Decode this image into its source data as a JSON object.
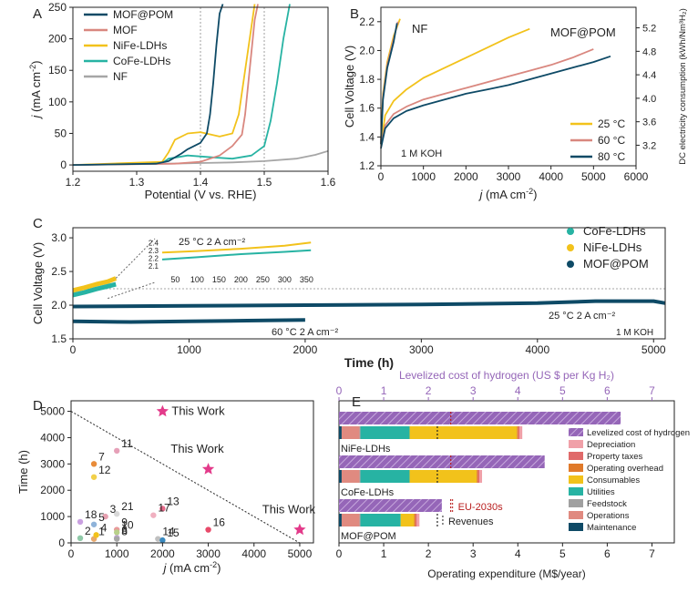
{
  "colors": {
    "mof_pom": "#0e4a66",
    "mof": "#d9877f",
    "nife": "#f2c21b",
    "cofe": "#27b3a3",
    "nf": "#a6a6a6",
    "purple": "#9566b8",
    "star": "#e33a8a",
    "black": "#222222",
    "red_dash": "#b81d1d"
  },
  "chart_data": [
    {
      "panel": "A",
      "type": "line",
      "xlabel": "Potential (V vs. RHE)",
      "ylabel": "j (mA cm⁻²)",
      "ylabel_italic": "j",
      "ylabel_rest": " (mA cm",
      "ylabel_sup": "-2",
      "ylabel_end": ")",
      "xlim": [
        1.2,
        1.6
      ],
      "ylim": [
        -10,
        250
      ],
      "xticks": [
        "1.2",
        "1.3",
        "1.4",
        "1.5",
        "1.6"
      ],
      "xtick_values": [
        1.2,
        1.3,
        1.4,
        1.5,
        1.6
      ],
      "yticks": [
        "0",
        "50",
        "100",
        "150",
        "200",
        "250"
      ],
      "ytick_values": [
        0,
        50,
        100,
        150,
        200,
        250
      ],
      "ref_lines_x": [
        1.4,
        1.5
      ],
      "series": [
        {
          "name": "MOF@POM",
          "color_key": "mof_pom",
          "x": [
            1.2,
            1.33,
            1.35,
            1.37,
            1.38,
            1.4,
            1.41,
            1.415,
            1.42,
            1.425,
            1.43,
            1.435
          ],
          "y": [
            0,
            2,
            6,
            18,
            25,
            35,
            50,
            80,
            130,
            190,
            240,
            255
          ]
        },
        {
          "name": "MOF",
          "color_key": "mof",
          "x": [
            1.2,
            1.36,
            1.4,
            1.43,
            1.45,
            1.465,
            1.47,
            1.475,
            1.48,
            1.485,
            1.49
          ],
          "y": [
            0,
            2,
            5,
            15,
            30,
            48,
            80,
            130,
            180,
            230,
            255
          ]
        },
        {
          "name": "NiFe-LDHs",
          "color_key": "nife",
          "x": [
            1.2,
            1.34,
            1.35,
            1.36,
            1.38,
            1.4,
            1.43,
            1.45,
            1.46,
            1.47,
            1.48,
            1.485
          ],
          "y": [
            0,
            5,
            20,
            40,
            50,
            52,
            45,
            50,
            80,
            150,
            220,
            255
          ]
        },
        {
          "name": "CoFe-LDHs",
          "color_key": "cofe",
          "x": [
            1.2,
            1.34,
            1.35,
            1.38,
            1.42,
            1.45,
            1.48,
            1.5,
            1.51,
            1.52,
            1.53,
            1.54
          ],
          "y": [
            0,
            3,
            10,
            15,
            12,
            10,
            15,
            30,
            70,
            130,
            200,
            255
          ]
        },
        {
          "name": "NF",
          "color_key": "nf",
          "x": [
            1.2,
            1.35,
            1.4,
            1.45,
            1.5,
            1.55,
            1.58,
            1.6
          ],
          "y": [
            0,
            2,
            3,
            4,
            6,
            10,
            16,
            22
          ]
        }
      ]
    },
    {
      "panel": "B",
      "type": "line",
      "xlabel": "j (mA cm⁻²)",
      "xlabel_italic": "j",
      "xlabel_rest": " (mA cm",
      "xlabel_sup": "-2",
      "xlabel_end": ")",
      "ylabel": "Cell Voltage (V)",
      "y2label": "DC electricity consumption (kWh/Nm³H₂)",
      "xlim": [
        0,
        6000
      ],
      "ylim": [
        1.2,
        2.3
      ],
      "xticks": [
        "0",
        "1000",
        "2000",
        "3000",
        "4000",
        "5000",
        "6000"
      ],
      "xtick_values": [
        0,
        1000,
        2000,
        3000,
        4000,
        5000,
        6000
      ],
      "yticks": [
        "1.2",
        "1.4",
        "1.6",
        "1.8",
        "2.0",
        "2.2"
      ],
      "ytick_values": [
        1.2,
        1.4,
        1.6,
        1.8,
        2.0,
        2.2
      ],
      "y2ticks": [
        "3.2",
        "3.6",
        "4.0",
        "4.4",
        "4.8",
        "5.2"
      ],
      "y2tick_values": [
        3.2,
        3.6,
        4.0,
        4.4,
        4.8,
        5.2
      ],
      "annotations": [
        "NF",
        "MOF@POM",
        "1 M KOH"
      ],
      "legend": [
        "25 °C",
        "60 °C",
        "80 °C"
      ],
      "series": [
        {
          "name": "MOF@POM 25 °C",
          "color_key": "nife",
          "x": [
            0,
            100,
            300,
            600,
            1000,
            1500,
            2000,
            2500,
            3000,
            3500
          ],
          "y": [
            1.35,
            1.55,
            1.65,
            1.73,
            1.81,
            1.88,
            1.95,
            2.02,
            2.09,
            2.15
          ]
        },
        {
          "name": "MOF@POM 60 °C",
          "color_key": "mof",
          "x": [
            0,
            100,
            300,
            600,
            1000,
            1500,
            2000,
            2500,
            3000,
            3500,
            4000,
            4500,
            5000
          ],
          "y": [
            1.33,
            1.48,
            1.56,
            1.61,
            1.66,
            1.7,
            1.74,
            1.78,
            1.82,
            1.86,
            1.9,
            1.95,
            2.01
          ]
        },
        {
          "name": "MOF@POM 80 °C",
          "color_key": "mof_pom",
          "x": [
            0,
            100,
            300,
            600,
            1000,
            1500,
            2000,
            2500,
            3000,
            3500,
            4000,
            4500,
            5000,
            5400
          ],
          "y": [
            1.32,
            1.46,
            1.53,
            1.58,
            1.62,
            1.66,
            1.7,
            1.73,
            1.76,
            1.8,
            1.84,
            1.88,
            1.92,
            1.96
          ]
        },
        {
          "name": "NF 25 °C",
          "color_key": "nife",
          "x": [
            0,
            50,
            150,
            300,
            450
          ],
          "y": [
            1.38,
            1.7,
            1.92,
            2.1,
            2.22
          ]
        },
        {
          "name": "NF 60 °C",
          "color_key": "mof",
          "x": [
            0,
            50,
            150,
            300,
            400
          ],
          "y": [
            1.36,
            1.68,
            1.9,
            2.08,
            2.2
          ]
        },
        {
          "name": "NF 80 °C",
          "color_key": "mof_pom",
          "x": [
            0,
            50,
            150,
            300,
            380
          ],
          "y": [
            1.35,
            1.66,
            1.88,
            2.06,
            2.19
          ]
        }
      ]
    },
    {
      "panel": "C",
      "type": "line",
      "xlabel": "Time (h)",
      "ylabel": "Cell Voltage (V)",
      "xlim": [
        0,
        5100
      ],
      "ylim": [
        1.5,
        3.15
      ],
      "xticks": [
        "0",
        "1000",
        "2000",
        "3000",
        "4000",
        "5000"
      ],
      "xtick_values": [
        0,
        1000,
        2000,
        3000,
        4000,
        5000
      ],
      "yticks": [
        "1.5",
        "2.0",
        "2.5",
        "3.0"
      ],
      "ytick_values": [
        1.5,
        2.0,
        2.5,
        3.0
      ],
      "legend": [
        "CoFe-LDHs",
        "NiFe-LDHs",
        "MOF@POM"
      ],
      "annotations": {
        "inset_condition": "25 °C   2 A cm⁻²",
        "lower_condition": "60 °C   2 A cm⁻²",
        "upper_condition": "25 °C   2 A cm⁻²",
        "electrolyte": "1 M KOH"
      },
      "inset": {
        "xticks": [
          "50",
          "100",
          "150",
          "200",
          "250",
          "300",
          "350"
        ],
        "xtick_values": [
          50,
          100,
          150,
          200,
          250,
          300,
          350
        ],
        "yticks": [
          "2.1",
          "2.2",
          "2.3",
          "2.4"
        ],
        "ytick_values": [
          2.1,
          2.2,
          2.3,
          2.4
        ],
        "xlim": [
          20,
          370
        ],
        "ylim": [
          2.05,
          2.45
        ],
        "series": [
          {
            "name": "NiFe-LDHs",
            "color_key": "nife",
            "x": [
              20,
              100,
              200,
              300,
              360
            ],
            "y": [
              2.27,
              2.29,
              2.32,
              2.36,
              2.4
            ]
          },
          {
            "name": "CoFe-LDHs",
            "color_key": "cofe",
            "x": [
              20,
              100,
              200,
              300,
              360
            ],
            "y": [
              2.18,
              2.21,
              2.25,
              2.28,
              2.3
            ]
          }
        ]
      },
      "series": [
        {
          "name": "NiFe-LDHs",
          "color_key": "nife",
          "x": [
            0,
            100,
            200,
            300,
            370
          ],
          "y": [
            2.22,
            2.26,
            2.31,
            2.35,
            2.4
          ]
        },
        {
          "name": "CoFe-LDHs",
          "color_key": "cofe",
          "x": [
            0,
            100,
            200,
            300,
            370
          ],
          "y": [
            2.15,
            2.19,
            2.24,
            2.28,
            2.31
          ]
        },
        {
          "name": "MOF@POM 60 °C",
          "color_key": "mof_pom",
          "x": [
            0,
            500,
            1000,
            1500,
            2000
          ],
          "y": [
            1.76,
            1.75,
            1.76,
            1.77,
            1.78
          ]
        },
        {
          "name": "MOF@POM 25 °C",
          "color_key": "mof_pom",
          "x": [
            0,
            1000,
            2000,
            3000,
            4000,
            4500,
            5000,
            5100
          ],
          "y": [
            1.98,
            1.99,
            2.0,
            2.01,
            2.03,
            2.06,
            2.06,
            2.03
          ]
        }
      ]
    },
    {
      "panel": "D",
      "type": "scatter",
      "xlabel": "j (mA cm⁻²)",
      "xlabel_italic": "j",
      "xlabel_rest": " (mA cm",
      "xlabel_sup": "-2",
      "xlabel_end": ")",
      "ylabel": "Time (h)",
      "xlim": [
        0,
        5300
      ],
      "ylim": [
        0,
        5400
      ],
      "xticks": [
        "0",
        "1000",
        "2000",
        "3000",
        "4000",
        "5000"
      ],
      "xtick_values": [
        0,
        1000,
        2000,
        3000,
        4000,
        5000
      ],
      "yticks": [
        "0",
        "1000",
        "2000",
        "3000",
        "4000",
        "5000"
      ],
      "ytick_values": [
        0,
        1000,
        2000,
        3000,
        4000,
        5000
      ],
      "trend_line": {
        "x": [
          0,
          5000
        ],
        "y": [
          5000,
          0
        ]
      },
      "stars": [
        {
          "label": "This Work",
          "x": 2000,
          "y": 5000
        },
        {
          "label": "This Work",
          "x": 3000,
          "y": 2800
        },
        {
          "label": "This Work",
          "x": 5000,
          "y": 500
        }
      ],
      "points": [
        {
          "label": "1",
          "x": 500,
          "y": 150,
          "color": "#e8a86b"
        },
        {
          "label": "2",
          "x": 200,
          "y": 180,
          "color": "#8fc9a8"
        },
        {
          "label": "3",
          "x": 750,
          "y": 1000,
          "color": "#e6a0b0"
        },
        {
          "label": "4",
          "x": 550,
          "y": 300,
          "color": "#f2c21b"
        },
        {
          "label": "5",
          "x": 500,
          "y": 700,
          "color": "#8fb3d9"
        },
        {
          "label": "6",
          "x": 1000,
          "y": 200,
          "color": "#c8a8e0"
        },
        {
          "label": "7",
          "x": 500,
          "y": 3000,
          "color": "#e88c3a"
        },
        {
          "label": "8",
          "x": 1000,
          "y": 150,
          "color": "#a6a6a6"
        },
        {
          "label": "9",
          "x": 1000,
          "y": 500,
          "color": "#e89a9a"
        },
        {
          "label": "10",
          "x": 1000,
          "y": 400,
          "color": "#b8d08a"
        },
        {
          "label": "11",
          "x": 1000,
          "y": 3500,
          "color": "#e6a0b8"
        },
        {
          "label": "12",
          "x": 500,
          "y": 2500,
          "color": "#f2d04a"
        },
        {
          "label": "13",
          "x": 2000,
          "y": 1300,
          "color": "#e86a8a"
        },
        {
          "label": "14",
          "x": 1900,
          "y": 150,
          "color": "#c0c0c0"
        },
        {
          "label": "15",
          "x": 2000,
          "y": 100,
          "color": "#3a8ac0"
        },
        {
          "label": "16",
          "x": 3000,
          "y": 500,
          "color": "#e84a6a"
        },
        {
          "label": "17",
          "x": 1800,
          "y": 1050,
          "color": "#f0b0c0"
        },
        {
          "label": "18",
          "x": 200,
          "y": 800,
          "color": "#c9a0e0"
        },
        {
          "label": "21",
          "x": 1000,
          "y": 1100,
          "color": "#d8d8d8"
        }
      ]
    },
    {
      "panel": "E",
      "type": "bar",
      "xlabel": "Operating expenditure (M$/year)",
      "x2label": "Levelized cost of hydrogen (US $ per Kg H₂)",
      "xlim": [
        0,
        7.5
      ],
      "xticks": [
        "0",
        "1",
        "2",
        "3",
        "4",
        "5",
        "6",
        "7"
      ],
      "xtick_values": [
        0,
        1,
        2,
        3,
        4,
        5,
        6,
        7
      ],
      "x2lim": [
        0,
        7.5
      ],
      "x2ticks": [
        "0",
        "1",
        "2",
        "3",
        "4",
        "5",
        "6",
        "7"
      ],
      "x2tick_values": [
        0,
        1,
        2,
        3,
        4,
        5,
        6,
        7
      ],
      "categories": [
        "NiFe-LDHs",
        "CoFe-LDHs",
        "MOF@POM"
      ],
      "lcoh": [
        6.3,
        4.6,
        2.3
      ],
      "revenues": [
        2.2,
        2.2,
        2.2
      ],
      "eu_2030s": 2.5,
      "eu_label": "EU-2030s",
      "revenues_label": "Revenues",
      "components": [
        {
          "name": "Maintenance",
          "color": "#0e4a66"
        },
        {
          "name": "Operations",
          "color": "#e08a80"
        },
        {
          "name": "Feedstock",
          "color": "#a0a0a0"
        },
        {
          "name": "Utilities",
          "color": "#27b3a3"
        },
        {
          "name": "Consumables",
          "color": "#f2c21b"
        },
        {
          "name": "Operating overhead",
          "color": "#e07a2a"
        },
        {
          "name": "Property taxes",
          "color": "#e06a6a"
        },
        {
          "name": "Depreciation",
          "color": "#f0a0a8"
        }
      ],
      "opex": [
        [
          0.06,
          0.4,
          0.02,
          1.1,
          2.4,
          0.03,
          0.03,
          0.06
        ],
        [
          0.06,
          0.4,
          0.02,
          1.1,
          1.5,
          0.03,
          0.03,
          0.06
        ],
        [
          0.06,
          0.4,
          0.02,
          0.9,
          0.3,
          0.03,
          0.03,
          0.06
        ]
      ],
      "legend": [
        "Levelized cost of hydrogen",
        "Depreciation",
        "Property taxes",
        "Operating overhead",
        "Consumables",
        "Utilities",
        "Feedstock",
        "Operations",
        "Maintenance"
      ]
    }
  ],
  "panel_labels": [
    "A",
    "B",
    "C",
    "D",
    "E"
  ]
}
